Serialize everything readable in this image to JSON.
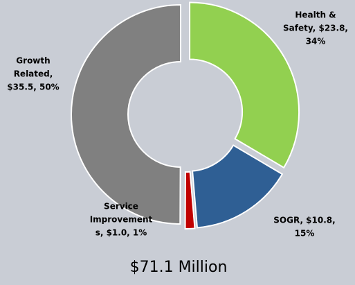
{
  "chart_data": {
    "type": "donut",
    "values": [
      23.8,
      10.8,
      1.0,
      35.5
    ],
    "value_labels": [
      [
        "Health &",
        "Safety, $23.8,",
        "34%"
      ],
      [
        "SOGR, $10.8,",
        "15%"
      ],
      [
        "Service",
        "Improvement",
        "s, $1.0, 1%"
      ],
      [
        "Growth",
        "Related,",
        "$35.5, 50%"
      ]
    ],
    "colors": [
      "#92d050",
      "#2f5f94",
      "#c00000",
      "#808080"
    ],
    "subtitle": "$71.1 Million"
  }
}
